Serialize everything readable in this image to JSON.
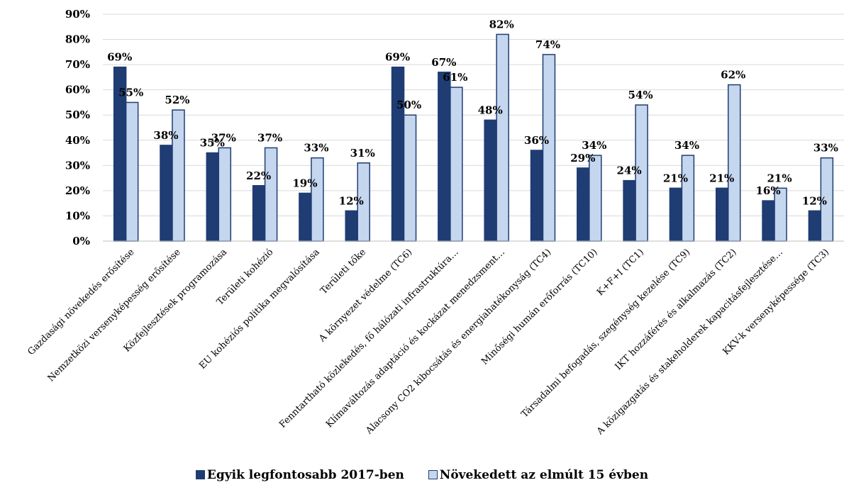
{
  "chart_data": {
    "type": "bar",
    "ylim": [
      0,
      0.9
    ],
    "yticks": [
      "0%",
      "10%",
      "20%",
      "30%",
      "40%",
      "50%",
      "60%",
      "70%",
      "80%",
      "90%"
    ],
    "grid": true,
    "legend_position": "bottom",
    "categories": [
      "Gazdasági növekedés erősítése",
      "Nemzetközi versenyképesség erősítése",
      "Közfejlesztések programozása",
      "Területi kohézió",
      "EU kohéziós politika megvalósítása",
      "Területi tőke",
      "A környezet védelme (TC6)",
      "Fenntartható közlekedés, fő hálózati infrastruktúra…",
      "Klímaváltozás adaptáció és kockázat menedzsment…",
      "Alacsony CO2 kibocsátás és energiahatékonyság (TC4)",
      "Minőségi humán erőforrás (TC10)",
      "K+F+I (TC1)",
      "Társadalmi befogadás, szegénység kezelése (TC9)",
      "IKT hozzáférés és alkalmazás (TC2)",
      "A közigazgatás és stakeholderek kapacitásfejlesztése…",
      "KKV-k versenyképessége (TC3)"
    ],
    "series": [
      {
        "name": "Egyik legfontosabb 2017-ben",
        "color": "#1f3d73",
        "values": [
          0.69,
          0.38,
          0.35,
          0.22,
          0.19,
          0.12,
          0.69,
          0.67,
          0.48,
          0.36,
          0.29,
          0.24,
          0.21,
          0.21,
          0.16,
          0.12
        ],
        "labels": [
          "69%",
          "38%",
          "35%",
          "22%",
          "19%",
          "12%",
          "69%",
          "67%",
          "48%",
          "36%",
          "29%",
          "24%",
          "21%",
          "21%",
          "16%",
          "12%"
        ]
      },
      {
        "name": "Növekedett az elmúlt 15 évben",
        "color": "#c5d6ef",
        "values": [
          0.55,
          0.52,
          0.37,
          0.37,
          0.33,
          0.31,
          0.5,
          0.61,
          0.82,
          0.74,
          0.34,
          0.54,
          0.34,
          0.62,
          0.21,
          0.33
        ],
        "labels": [
          "55%",
          "52%",
          "37%",
          "37%",
          "33%",
          "31%",
          "50%",
          "61%",
          "82%",
          "74%",
          "34%",
          "54%",
          "34%",
          "62%",
          "21%",
          "33%"
        ]
      }
    ]
  }
}
